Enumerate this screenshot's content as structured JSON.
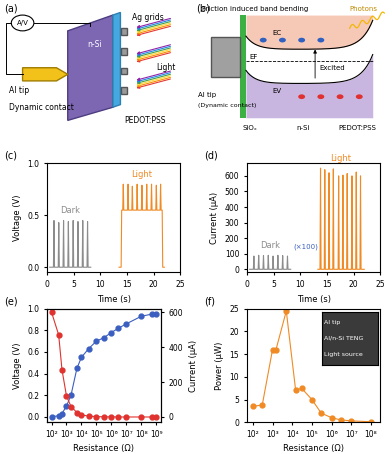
{
  "diagram_a": {
    "label": "(a)",
    "meter": "A/V",
    "semiconductor": "n-Si",
    "electrodes": "Ag grids",
    "light": "Light",
    "tip": "Al tip",
    "contact": "Dynamic contact",
    "hole_layer": "PEDOT:PSS"
  },
  "diagram_b": {
    "label": "(b)",
    "bending": "Friction induced band bending",
    "photons": "Photons",
    "levels": [
      "EC",
      "EF",
      "EV"
    ],
    "excited": "Excited",
    "tip": "Al tip",
    "contact": "(Dynamic contact)",
    "oxide": "SiOₓ",
    "semiconductor": "n-Si",
    "hole_layer": "PEDOT:PSS"
  },
  "chart_data": [
    {
      "type": "line",
      "title": "(c)",
      "x_label": "Time (s)",
      "y_label": "Voltage (V)",
      "xlim": [
        0,
        25
      ],
      "xticks": [
        0,
        5,
        10,
        15,
        20,
        25
      ],
      "ylim": [
        -0.05,
        1.0
      ],
      "yticks": [
        0.0,
        0.5,
        1.0
      ],
      "series": [
        {
          "name": "Dark",
          "color": "#8c8c8c",
          "line_style": "solid",
          "x": [
            0.5,
            1.2,
            1.3,
            1.4,
            2.1,
            2.2,
            2.3,
            3.0,
            3.1,
            3.2,
            3.9,
            4.0,
            4.1,
            4.8,
            4.9,
            5.0,
            5.7,
            5.8,
            5.9,
            6.6,
            6.7,
            6.8,
            7.5,
            7.6,
            7.7,
            8.2
          ],
          "values": [
            0,
            0,
            0.45,
            0,
            0,
            0.43,
            0,
            0,
            0.45,
            0,
            0,
            0.44,
            0,
            0,
            0.45,
            0,
            0,
            0.44,
            0,
            0,
            0.45,
            0,
            0,
            0.44,
            0,
            0
          ]
        },
        {
          "name": "Light",
          "color": "#f08a24",
          "line_style": "solid",
          "x": [
            13.5,
            13.9,
            14.0,
            14.2,
            14.3,
            14.4,
            15.1,
            15.2,
            15.3,
            15.9,
            16.0,
            16.1,
            16.8,
            16.9,
            17.0,
            17.7,
            17.8,
            17.9,
            18.6,
            18.7,
            18.8,
            19.5,
            19.6,
            19.7,
            20.4,
            20.5,
            20.6,
            21.2,
            21.3,
            21.4,
            21.6,
            21.7,
            22.0
          ],
          "values": [
            0,
            0,
            0.55,
            0.55,
            0.8,
            0.55,
            0.55,
            0.8,
            0.55,
            0.55,
            0.78,
            0.55,
            0.55,
            0.8,
            0.55,
            0.55,
            0.79,
            0.55,
            0.55,
            0.8,
            0.55,
            0.55,
            0.8,
            0.55,
            0.55,
            0.79,
            0.55,
            0.55,
            0.8,
            0.55,
            0.55,
            0,
            0
          ]
        }
      ]
    },
    {
      "type": "line",
      "title": "(d)",
      "x_label": "Time (s)",
      "y_label": "Current (μA)",
      "annotation": "(×100)",
      "xlim": [
        0,
        25
      ],
      "xticks": [
        0,
        5,
        10,
        15,
        20,
        25
      ],
      "ylim": [
        -20,
        680
      ],
      "yticks": [
        0,
        100,
        200,
        300,
        400,
        500,
        600
      ],
      "series": [
        {
          "name": "Dark",
          "color": "#8c8c8c",
          "line_style": "solid",
          "x": [
            0.5,
            1.2,
            1.3,
            1.4,
            2.1,
            2.2,
            2.3,
            3.0,
            3.1,
            3.2,
            3.9,
            4.0,
            4.1,
            4.8,
            4.9,
            5.0,
            5.7,
            5.8,
            5.9,
            6.6,
            6.7,
            6.8,
            7.5,
            7.6,
            7.7,
            8.2
          ],
          "values": [
            0,
            0,
            85,
            0,
            0,
            90,
            0,
            0,
            88,
            0,
            0,
            90,
            0,
            0,
            85,
            0,
            0,
            90,
            0,
            0,
            88,
            0,
            0,
            85,
            0,
            0
          ]
        },
        {
          "name": "Light",
          "color": "#f08a24",
          "line_style": "solid",
          "x": [
            13.3,
            13.7,
            13.8,
            13.9,
            14.5,
            14.6,
            14.7,
            15.3,
            15.4,
            15.5,
            16.1,
            16.2,
            16.3,
            17.1,
            17.2,
            17.3,
            17.9,
            18.0,
            18.1,
            18.7,
            18.8,
            18.9,
            19.6,
            19.7,
            19.8,
            20.4,
            20.5,
            20.6,
            21.2,
            21.3,
            21.4,
            22.0
          ],
          "values": [
            0,
            0,
            650,
            0,
            0,
            640,
            0,
            0,
            620,
            0,
            0,
            645,
            0,
            0,
            600,
            0,
            0,
            605,
            0,
            0,
            615,
            0,
            0,
            600,
            0,
            0,
            625,
            0,
            0,
            600,
            0,
            0
          ]
        }
      ]
    },
    {
      "type": "line",
      "title": "(e)",
      "x_label": "Resistance (Ω)",
      "y_label": "Voltage (V)",
      "y2_label": "Current (μA)",
      "log": "x",
      "xlim": [
        50,
        2000000000
      ],
      "xticks": [
        {
          "value": 100,
          "label": "10²"
        },
        {
          "value": 1000,
          "label": "10³"
        },
        {
          "value": 10000,
          "label": "10⁴"
        },
        {
          "value": 100000,
          "label": "10⁵"
        },
        {
          "value": 1000000,
          "label": "10⁶"
        },
        {
          "value": 10000000,
          "label": "10⁷"
        },
        {
          "value": 100000000,
          "label": "10⁸"
        },
        {
          "value": 1000000000,
          "label": "10⁹"
        }
      ],
      "ylim": [
        -0.05,
        1.0
      ],
      "yticks": [
        0.0,
        0.2,
        0.4,
        0.6,
        0.8,
        1.0
      ],
      "y2lim": [
        -30,
        620
      ],
      "y2ticks": [
        0,
        200,
        400,
        600
      ],
      "series": [
        {
          "name": "Voltage",
          "color": "#3b5fc0",
          "marker": "o",
          "line_style": "solid",
          "x": [
            100,
            300,
            500,
            1000,
            2000,
            5000,
            10000,
            30000,
            100000,
            300000,
            1000000,
            3000000,
            10000000,
            100000000,
            500000000,
            1000000000
          ],
          "values": [
            0.0,
            0.01,
            0.03,
            0.1,
            0.2,
            0.45,
            0.55,
            0.63,
            0.7,
            0.73,
            0.78,
            0.82,
            0.86,
            0.93,
            0.95,
            0.95
          ]
        },
        {
          "name": "Current",
          "color": "#e0322e",
          "marker": "o",
          "line_style": "solid",
          "axis": "y2",
          "x": [
            100,
            300,
            500,
            1000,
            2000,
            5000,
            10000,
            30000,
            100000,
            300000,
            1000000,
            3000000,
            10000000,
            100000000,
            500000000,
            1000000000
          ],
          "values": [
            600,
            470,
            270,
            120,
            60,
            25,
            12,
            5,
            2,
            1,
            0.5,
            0,
            0,
            0,
            0,
            0
          ]
        }
      ]
    },
    {
      "type": "line",
      "title": "(f)",
      "x_label": "Resistance (Ω)",
      "y_label": "Power (μW)",
      "inset": [
        "Al tip",
        "Al/n-Si TENG",
        "Light source"
      ],
      "log": "x",
      "xlim": [
        50,
        300000000
      ],
      "xticks": [
        {
          "value": 100,
          "label": "10²"
        },
        {
          "value": 1000,
          "label": "10³"
        },
        {
          "value": 10000,
          "label": "10⁴"
        },
        {
          "value": 100000,
          "label": "10⁵"
        },
        {
          "value": 1000000,
          "label": "10⁶"
        },
        {
          "value": 10000000,
          "label": "10⁷"
        },
        {
          "value": 100000000,
          "label": "10⁸"
        }
      ],
      "ylim": [
        0,
        25
      ],
      "yticks": [
        0,
        5,
        10,
        15,
        20,
        25
      ],
      "series": [
        {
          "name": "Power",
          "color": "#f08a24",
          "marker": "o",
          "line_style": "solid",
          "x": [
            100,
            300,
            1000,
            1500,
            5000,
            15000,
            30000,
            100000,
            300000,
            1000000,
            3000000,
            10000000,
            100000000
          ],
          "values": [
            3.5,
            3.8,
            16,
            16,
            24.5,
            7,
            7.5,
            5,
            2,
            1,
            0.5,
            0.3,
            0.1
          ]
        }
      ]
    }
  ]
}
